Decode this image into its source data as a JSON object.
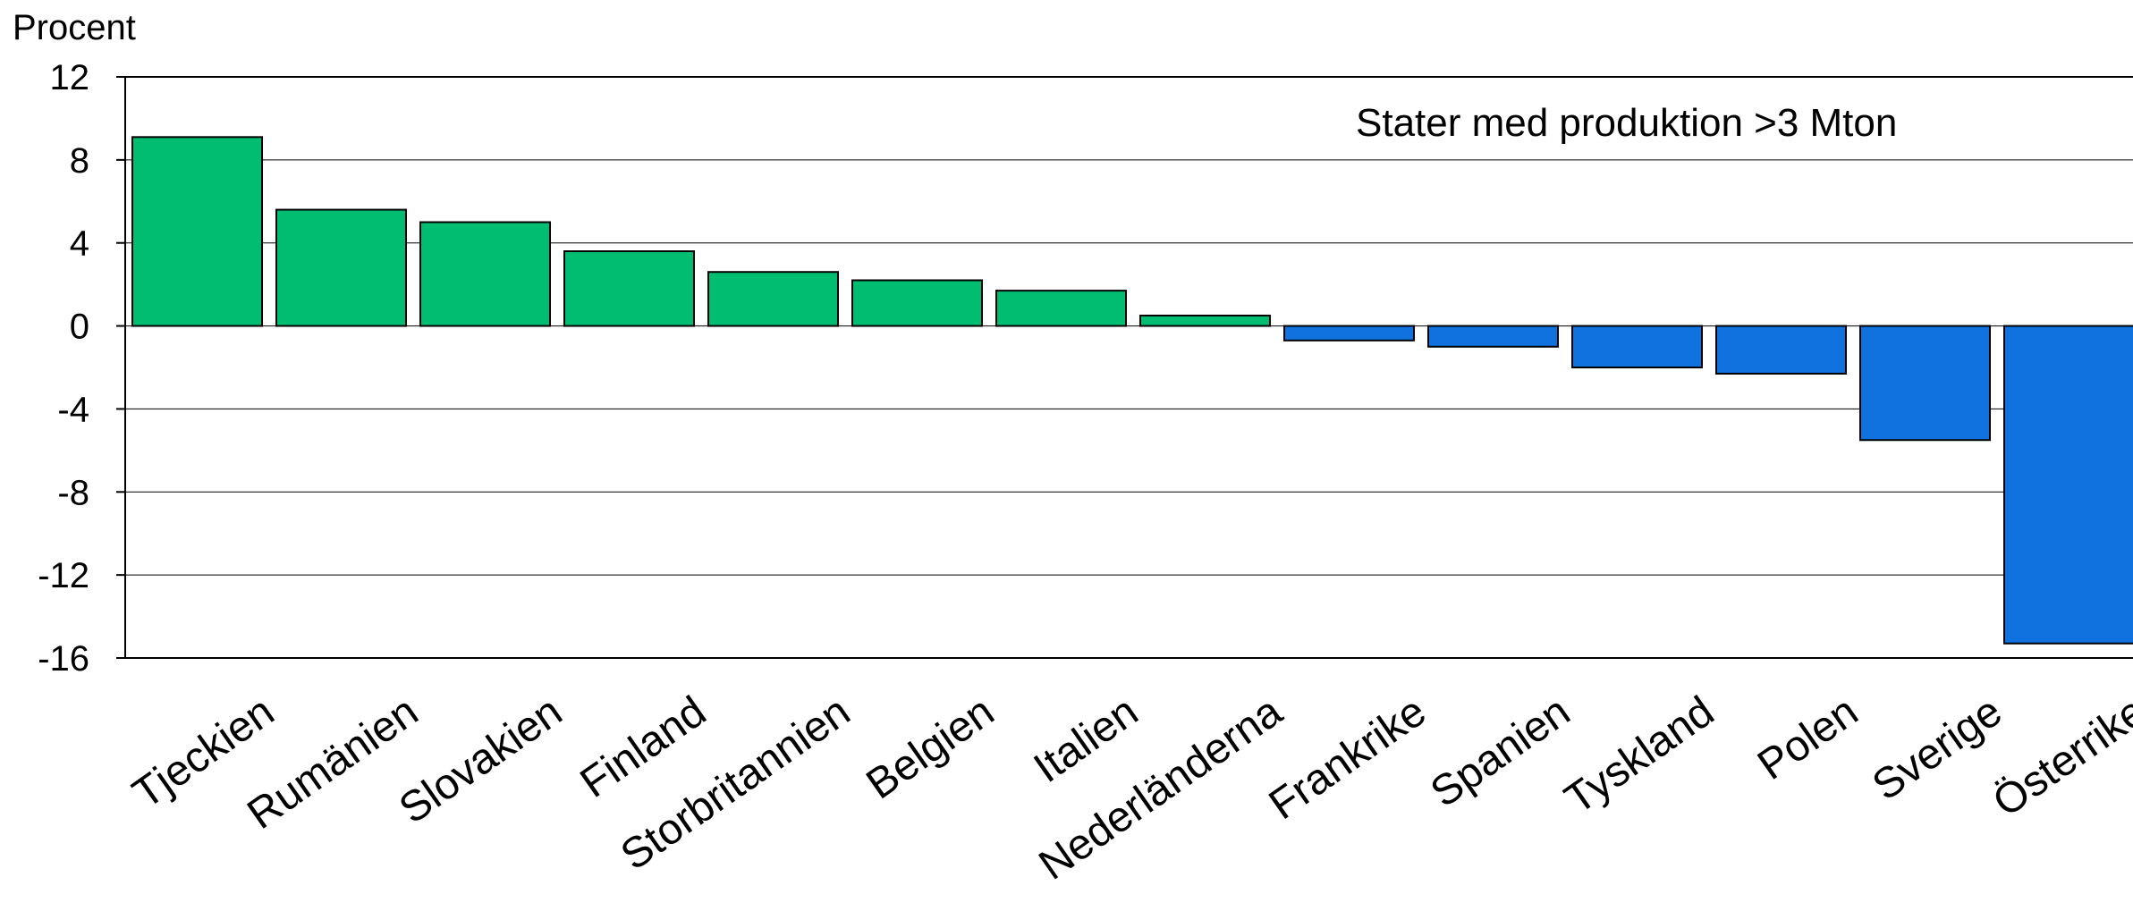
{
  "chart_data": {
    "type": "bar",
    "ylabel": "Procent",
    "annotation": "Stater med produktion >3 Mton",
    "ylim": [
      -16,
      12
    ],
    "yticks": [
      12,
      8,
      4,
      0,
      -4,
      -8,
      -12,
      -16
    ],
    "yticklabels": [
      "12",
      "8",
      "4",
      "0",
      "-4",
      "-8",
      "-12",
      "-16"
    ],
    "grid": true,
    "categories": [
      "Tjeckien",
      "Rumänien",
      "Slovakien",
      "Finland",
      "Storbritannien",
      "Belgien",
      "Italien",
      "Nederländerna",
      "Frankrike",
      "Spanien",
      "Tyskland",
      "Polen",
      "Sverige",
      "Österrike"
    ],
    "values": [
      9.1,
      5.6,
      5.0,
      3.6,
      2.6,
      2.2,
      1.7,
      0.5,
      -0.7,
      -1.0,
      -2.0,
      -2.3,
      -5.5,
      -15.3
    ],
    "colors": {
      "positive": "#00BD72",
      "negative": "#0F72DF",
      "axis": "#000000"
    }
  }
}
